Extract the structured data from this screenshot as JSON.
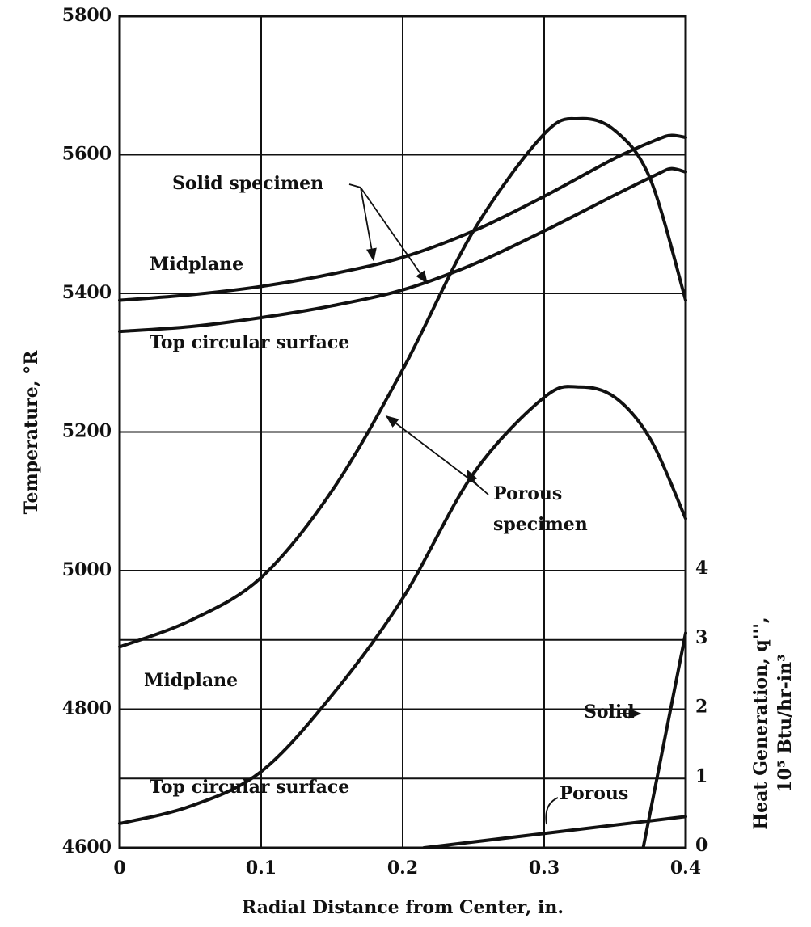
{
  "chart_data": {
    "type": "line",
    "x_label": "Radial Distance from Center, in.",
    "y_label": "Temperature, °R",
    "y2_label": [
      "Heat Generation, q''',",
      "10⁵ Btu/hr-in³"
    ],
    "xlim": [
      0,
      0.4
    ],
    "xticks": [
      0,
      0.1,
      0.2,
      0.3,
      0.4
    ],
    "ylim": [
      4600,
      5800
    ],
    "yticks": [
      4600,
      4800,
      5000,
      5200,
      5400,
      5600,
      5800
    ],
    "y2lim": [
      0,
      12
    ],
    "y2ticks": [
      0,
      1,
      2,
      3,
      4
    ],
    "grid": true,
    "series": [
      {
        "name": "Solid specimen, Midplane",
        "color": "#111111",
        "x": [
          0,
          0.05,
          0.1,
          0.15,
          0.2,
          0.25,
          0.3,
          0.35,
          0.38,
          0.39,
          0.4
        ],
        "values": [
          5390,
          5398,
          5410,
          5428,
          5452,
          5490,
          5540,
          5595,
          5622,
          5628,
          5625
        ]
      },
      {
        "name": "Solid specimen, Top circular surface",
        "color": "#111111",
        "x": [
          0,
          0.05,
          0.1,
          0.15,
          0.2,
          0.25,
          0.3,
          0.35,
          0.38,
          0.39,
          0.4
        ],
        "values": [
          5345,
          5352,
          5365,
          5382,
          5405,
          5442,
          5490,
          5542,
          5572,
          5580,
          5575
        ]
      },
      {
        "name": "Porous specimen, Midplane",
        "color": "#111111",
        "x": [
          0,
          0.05,
          0.1,
          0.15,
          0.2,
          0.25,
          0.3,
          0.325,
          0.35,
          0.375,
          0.4
        ],
        "values": [
          4890,
          4928,
          4990,
          5115,
          5290,
          5490,
          5630,
          5652,
          5635,
          5565,
          5390
        ]
      },
      {
        "name": "Porous specimen, Top circular surface",
        "color": "#111111",
        "x": [
          0,
          0.05,
          0.1,
          0.15,
          0.2,
          0.25,
          0.3,
          0.325,
          0.35,
          0.375,
          0.4
        ],
        "values": [
          4635,
          4660,
          4710,
          4820,
          4960,
          5140,
          5250,
          5265,
          5250,
          5190,
          5075
        ]
      },
      {
        "name": "Solid",
        "color": "#111111",
        "axis": "y2",
        "x": [
          0.37,
          0.4
        ],
        "values": [
          0,
          3.1
        ]
      },
      {
        "name": "Porous",
        "color": "#111111",
        "axis": "y2",
        "x": [
          0.215,
          0.4
        ],
        "values": [
          0,
          0.45
        ]
      }
    ],
    "annotations": [
      "Solid specimen",
      "Midplane",
      "Top circular surface",
      "Porous",
      "specimen",
      "Midplane",
      "Top circular surface",
      "Solid",
      "Porous"
    ]
  }
}
